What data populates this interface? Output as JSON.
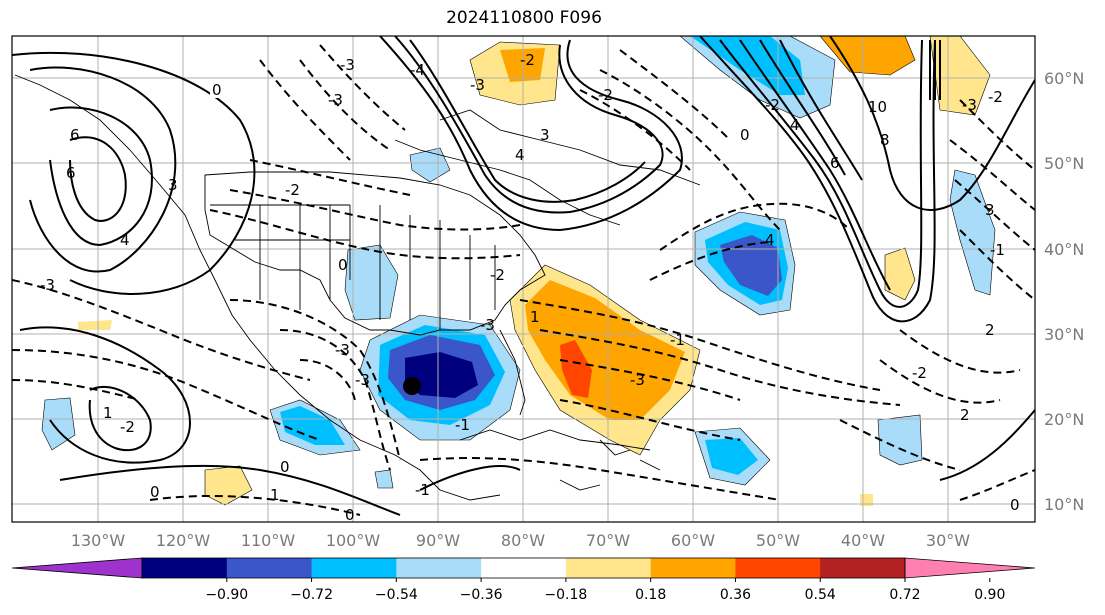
{
  "title": "2024110800 F096",
  "longitude_labels": [
    "130°W",
    "120°W",
    "110°W",
    "100°W",
    "90°W",
    "80°W",
    "70°W",
    "60°W",
    "50°W",
    "40°W",
    "30°W"
  ],
  "latitude_labels": [
    "60°N",
    "50°N",
    "40°N",
    "30°N",
    "20°N",
    "10°N"
  ],
  "colorbar": {
    "colors": [
      "#9d33cc",
      "#00007f",
      "#3a56c8",
      "#00bfff",
      "#a9dcf9",
      "#ffffff",
      "#ffe68c",
      "#ffa500",
      "#ff4500",
      "#b22222",
      "#ff80b0"
    ],
    "ticks": [
      "−0.90",
      "−0.72",
      "−0.54",
      "−0.36",
      "−0.18",
      "0.18",
      "0.36",
      "0.54",
      "0.72",
      "0.90"
    ]
  },
  "contour_labels": [
    "0",
    "-3",
    "-2",
    "6",
    "3",
    "-3",
    "4",
    "6",
    "-3",
    "0",
    "-3",
    "1",
    "1",
    "-1",
    "-2",
    "0",
    "-3",
    "-2",
    "0",
    "1",
    "0",
    "-3",
    "3",
    "4",
    "-4",
    "-3",
    "-2",
    "0",
    "10",
    "8",
    "6",
    "4",
    "4",
    "-2",
    "3",
    "-3",
    "-2",
    "-1",
    "-1",
    "2",
    "-2",
    "-3",
    "2",
    "-2",
    "0",
    "-1"
  ],
  "marker": {
    "label": "storm-center"
  }
}
